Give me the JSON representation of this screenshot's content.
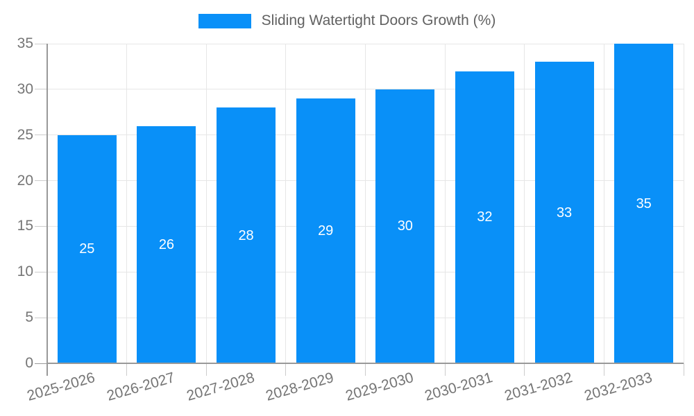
{
  "legend": {
    "label": "Sliding Watertight Doors Growth (%)"
  },
  "colors": {
    "bar": "#0990f8",
    "grid": "#e6e6e6",
    "tick": "#cccccc",
    "axis_line": "#999999",
    "axis_text": "#757575",
    "legend_text": "#616161",
    "bar_label_text": "#ffffff"
  },
  "chart_data": {
    "type": "bar",
    "title": "",
    "xlabel": "",
    "ylabel": "",
    "categories": [
      "2025-2026",
      "2026-2027",
      "2027-2028",
      "2028-2029",
      "2029-2030",
      "2030-2031",
      "2031-2032",
      "2032-2033"
    ],
    "series": [
      {
        "name": "Sliding Watertight Doors Growth (%)",
        "values": [
          25,
          26,
          28,
          29,
          30,
          32,
          33,
          35
        ]
      }
    ],
    "bar_value_labels": [
      25,
      26,
      28,
      29,
      30,
      32,
      33,
      35
    ],
    "ylim": [
      0,
      35
    ],
    "ytick_step": 5,
    "ytick_labels": [
      "0",
      "5",
      "10",
      "15",
      "20",
      "25",
      "30",
      "35"
    ],
    "grid": true,
    "legend_position": "top"
  }
}
